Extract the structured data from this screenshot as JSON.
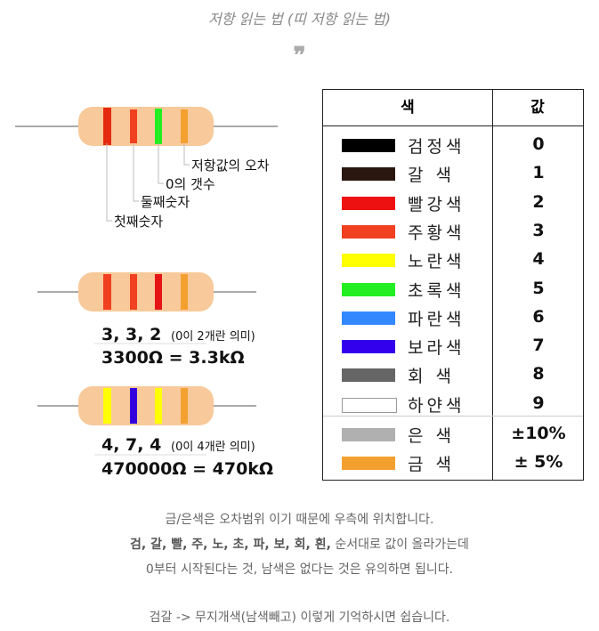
{
  "caption": "저항 읽는 법 (띠 저항 읽는 법)",
  "quote_mark": "❞",
  "diagram": {
    "labels": [
      "저항값의 오차",
      "0의 갯수",
      "둘째숫자",
      "첫째숫자"
    ],
    "ex1": {
      "digits": "3, 3, 2",
      "note": "(0이 2개란 의미)",
      "result": "3300Ω = 3.3kΩ"
    },
    "ex2": {
      "digits": "4, 7, 4",
      "note": "(0이 4개란 의미)",
      "result": "470000Ω = 470kΩ"
    }
  },
  "table": {
    "headers": [
      "색",
      "값"
    ],
    "rows": [
      {
        "label": "검정색",
        "value": "0",
        "color": "#000000"
      },
      {
        "label": "갈 색",
        "value": "1",
        "color": "#2a1810"
      },
      {
        "label": "빨강색",
        "value": "2",
        "color": "#ee1111"
      },
      {
        "label": "주황색",
        "value": "3",
        "color": "#f04020"
      },
      {
        "label": "노란색",
        "value": "4",
        "color": "#ffff00"
      },
      {
        "label": "초록색",
        "value": "5",
        "color": "#22ee22"
      },
      {
        "label": "파란색",
        "value": "6",
        "color": "#3388ff"
      },
      {
        "label": "보라색",
        "value": "7",
        "color": "#3300ee"
      },
      {
        "label": "회 색",
        "value": "8",
        "color": "#666666"
      },
      {
        "label": "하얀색",
        "value": "9",
        "color": "#ffffff"
      },
      {
        "label": "은 색",
        "value": "±10%",
        "color": "#b0b0b0"
      },
      {
        "label": "금 색",
        "value": "± 5%",
        "color": "#f4a030"
      }
    ]
  },
  "notes": {
    "line1": "금/은색은 오차범위 이기 때문에 우측에 위치합니다.",
    "line2_bold": "검, 갈, 빨, 주, 노, 초, 파, 보, 회, 흰,",
    "line2_rest": " 순서대로 값이 올라가는데",
    "line3": "0부터 시작된다는 것, 남색은 없다는 것은 유의하면 됩니다.",
    "line4": "검갈 -> 무지개색(남색빼고) 이렇게 기억하시면 쉽습니다."
  }
}
